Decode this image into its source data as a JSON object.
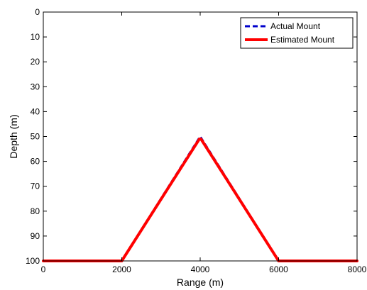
{
  "chart_data": {
    "type": "line",
    "title": "",
    "xlabel": "Range (m)",
    "ylabel": "Depth (m)",
    "xlim": [
      0,
      8000
    ],
    "ylim": [
      0,
      100
    ],
    "y_inverted": true,
    "grid": false,
    "legend_position": "top-right",
    "xticks": [
      0,
      2000,
      4000,
      6000,
      8000
    ],
    "yticks": [
      0,
      10,
      20,
      30,
      40,
      50,
      60,
      70,
      80,
      90,
      100
    ],
    "series": [
      {
        "name": "Actual Mount",
        "color": "#0000cc",
        "style": "dashed",
        "x": [
          0,
          2000,
          4000,
          6000,
          8000
        ],
        "y": [
          100,
          100,
          50,
          100,
          100
        ]
      },
      {
        "name": "Estimated Mount",
        "color": "#ff0000",
        "style": "solid",
        "x": [
          0,
          2000,
          3980,
          4020,
          6000,
          8000
        ],
        "y": [
          100,
          100,
          51,
          51,
          100,
          100
        ]
      }
    ]
  }
}
